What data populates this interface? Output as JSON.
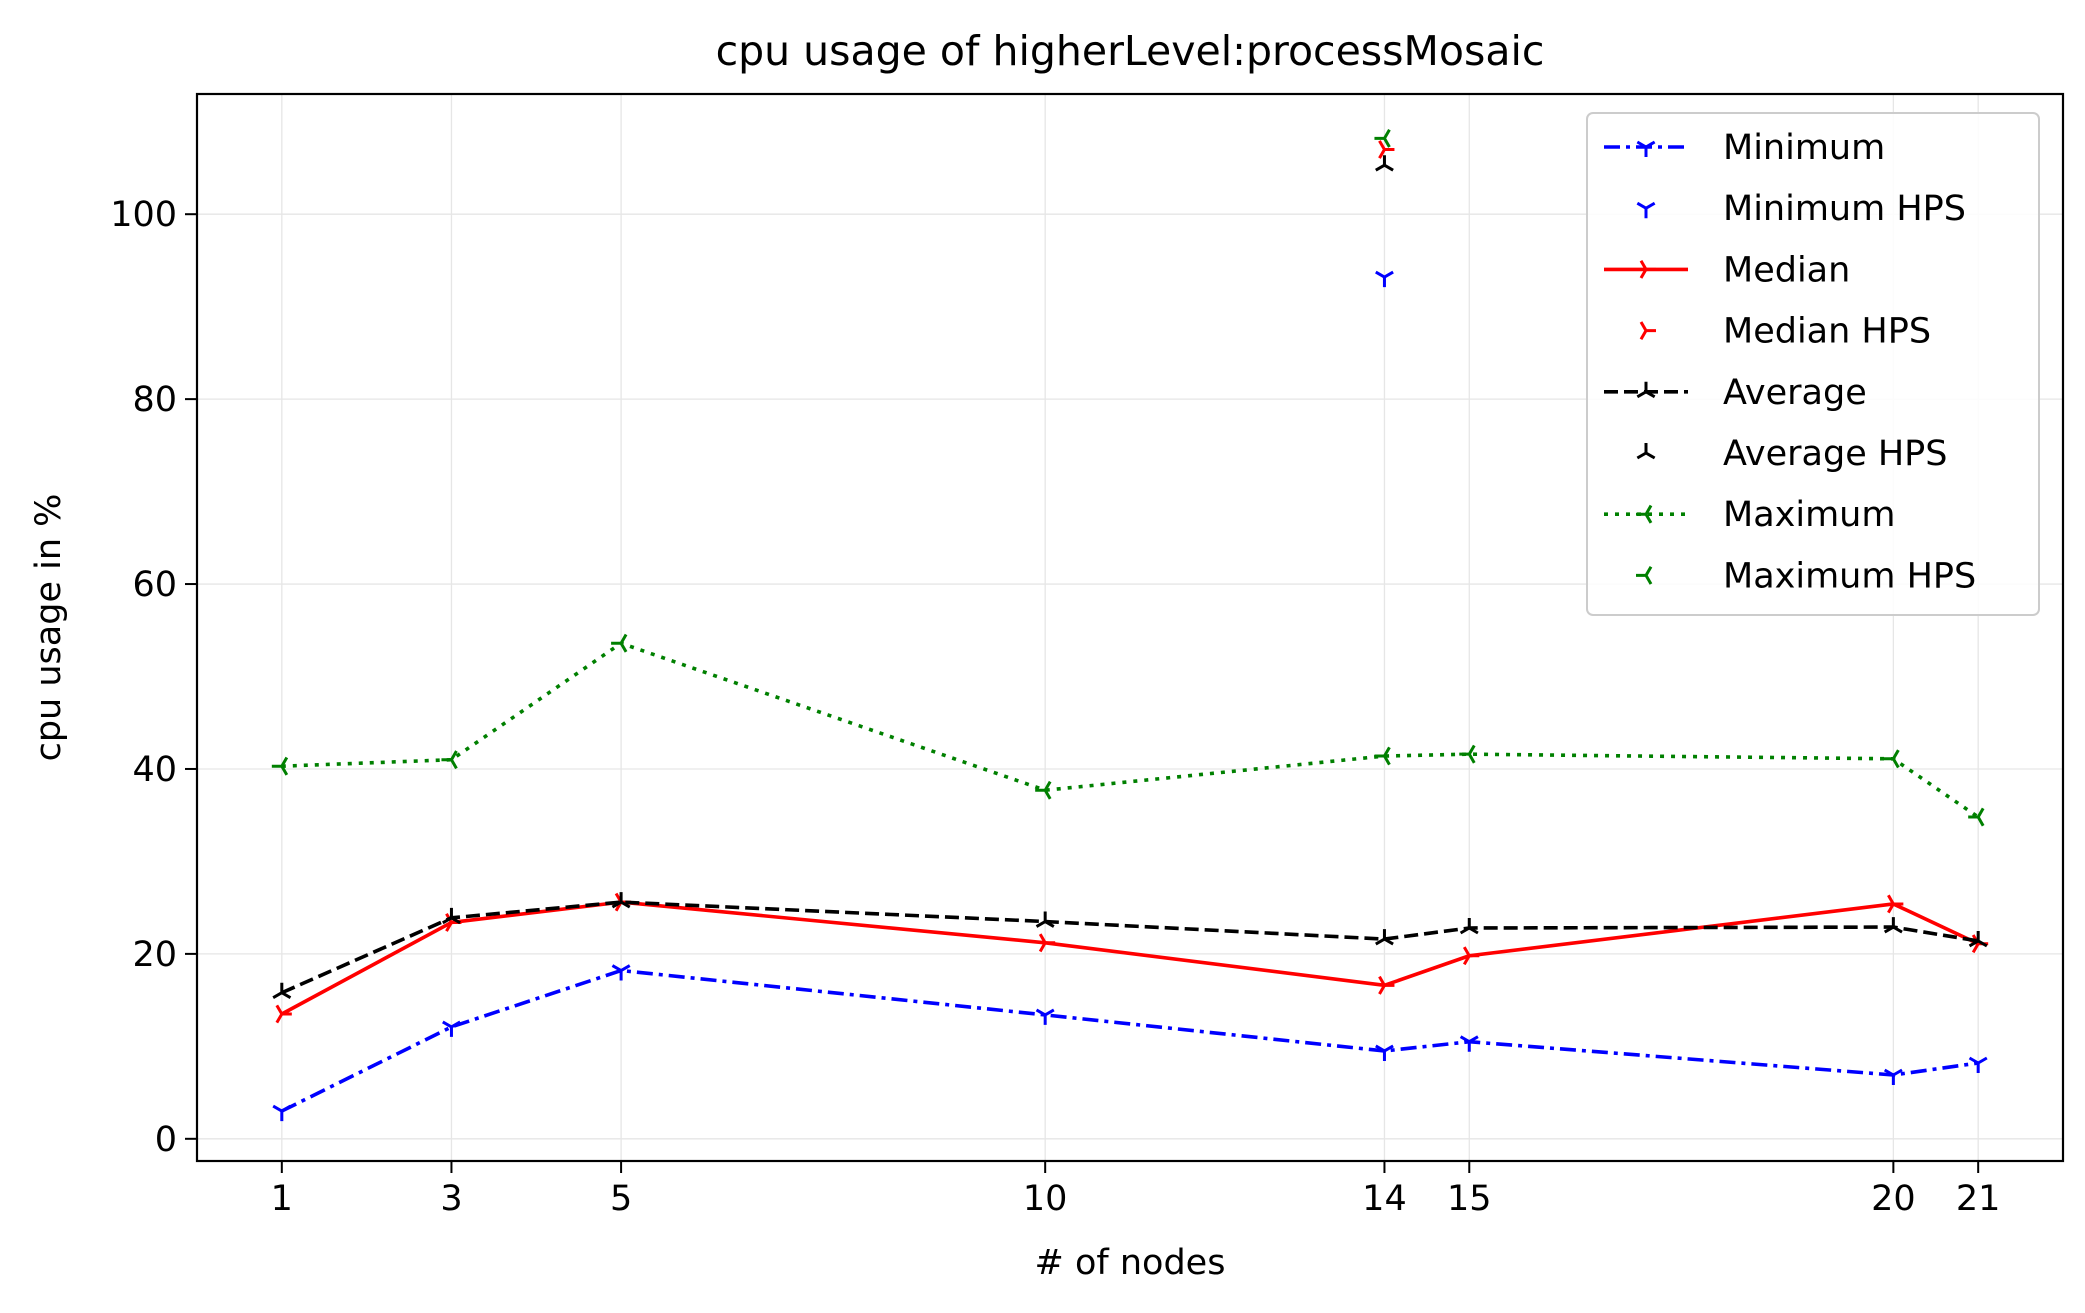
{
  "chart_data": {
    "type": "line",
    "title": "cpu usage of higherLevel:processMosaic",
    "xlabel": "# of nodes",
    "ylabel": "cpu usage in %",
    "xlim": [
      0,
      22
    ],
    "ylim": [
      -2.4,
      113
    ],
    "x_ticks": [
      1,
      3,
      5,
      10,
      14,
      15,
      20,
      21
    ],
    "y_ticks": [
      0,
      20,
      40,
      60,
      80,
      100
    ],
    "grid": true,
    "legend_position": "top-right",
    "series": [
      {
        "name": "Minimum",
        "color": "#0000ff",
        "style": "dashdot",
        "marker": "tri-down",
        "x": [
          1,
          3,
          5,
          10,
          14,
          15,
          20,
          21
        ],
        "values": [
          3.0,
          12.1,
          18.2,
          13.4,
          9.5,
          10.5,
          6.9,
          8.2
        ]
      },
      {
        "name": "Minimum HPS",
        "color": "#0000ff",
        "style": "none",
        "marker": "tri-down",
        "x": [
          14
        ],
        "values": [
          93.2
        ]
      },
      {
        "name": "Median",
        "color": "#ff0000",
        "style": "solid",
        "marker": "tri-right",
        "x": [
          1,
          3,
          5,
          10,
          14,
          15,
          20,
          21
        ],
        "values": [
          13.5,
          23.4,
          25.6,
          21.2,
          16.6,
          19.8,
          25.4,
          21.1
        ]
      },
      {
        "name": "Median HPS",
        "color": "#ff0000",
        "style": "none",
        "marker": "tri-right",
        "x": [
          14
        ],
        "values": [
          107.0
        ]
      },
      {
        "name": "Average",
        "color": "#000000",
        "style": "dashed",
        "marker": "tri-up",
        "x": [
          1,
          3,
          5,
          10,
          14,
          15,
          20,
          21
        ],
        "values": [
          15.8,
          23.9,
          25.6,
          23.5,
          21.6,
          22.8,
          22.9,
          21.4
        ]
      },
      {
        "name": "Average HPS",
        "color": "#000000",
        "style": "none",
        "marker": "tri-up",
        "x": [
          14
        ],
        "values": [
          105.3
        ]
      },
      {
        "name": "Maximum",
        "color": "#008000",
        "style": "dotted",
        "marker": "tri-left",
        "x": [
          1,
          3,
          5,
          10,
          14,
          15,
          20,
          21
        ],
        "values": [
          40.3,
          41.0,
          53.6,
          37.7,
          41.4,
          41.6,
          41.1,
          34.8
        ]
      },
      {
        "name": "Maximum HPS",
        "color": "#008000",
        "style": "none",
        "marker": "tri-left",
        "x": [
          14
        ],
        "values": [
          108.2
        ]
      }
    ]
  }
}
